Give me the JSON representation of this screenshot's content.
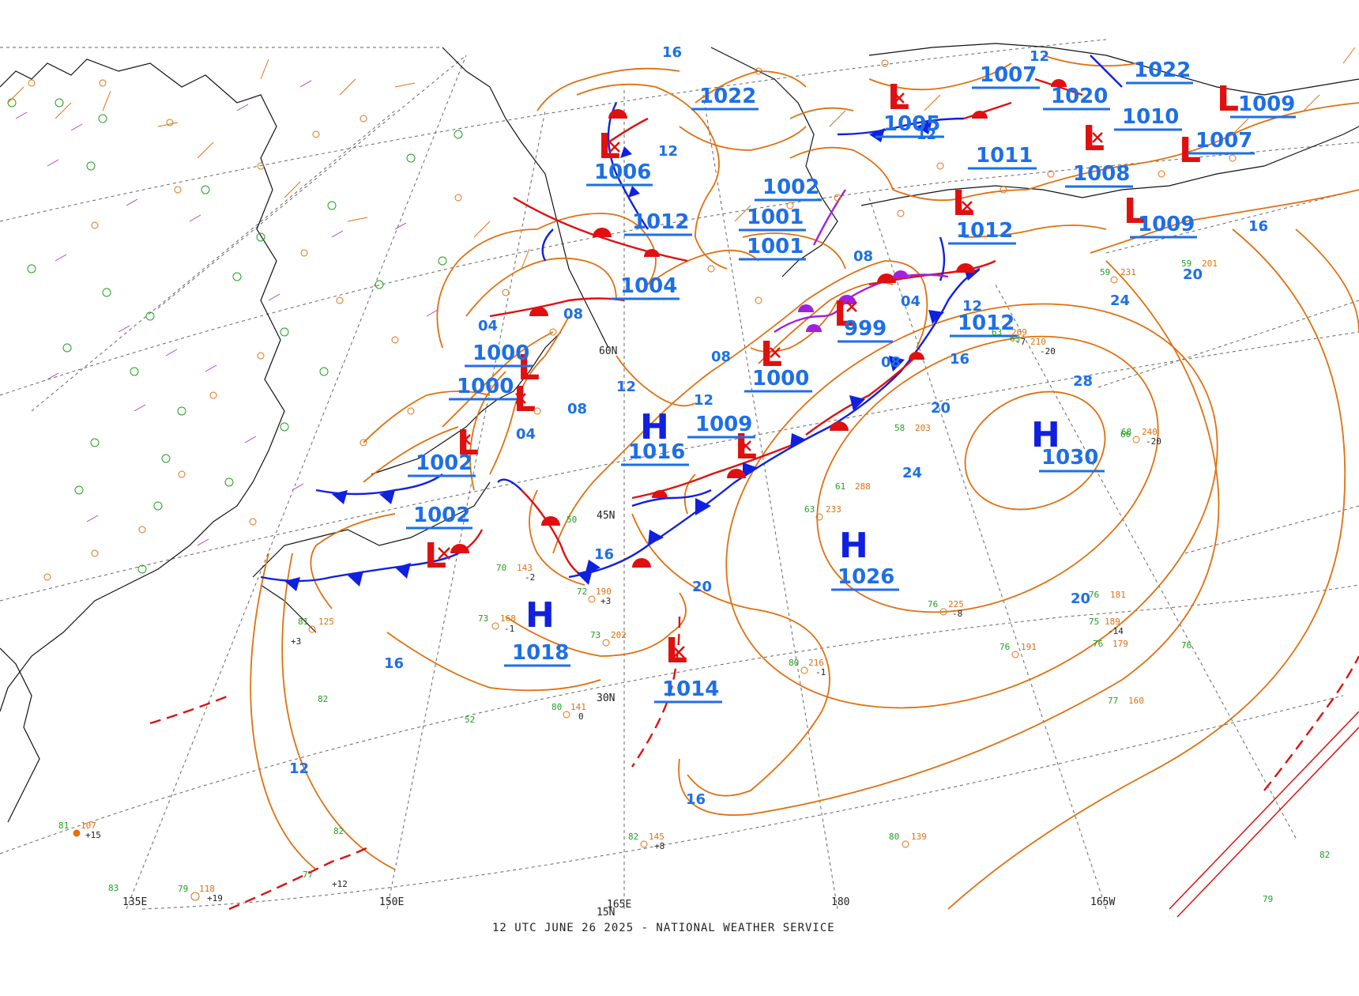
{
  "colors": {
    "isobar": "#e07010",
    "high": "#1020e0",
    "low": "#e01010",
    "pressure_label": "#1e6fe6",
    "cold_front": "#1020e0",
    "warm_front": "#e01010",
    "occluded_front": "#a020e0",
    "coast": "#111111",
    "grid": "#333333",
    "temp": "#b040c0",
    "dewpoint": "#20a020",
    "pressure_obs": "#e07010"
  },
  "caption": "12 UTC JUNE 26 2025 - NATIONAL WEATHER SERVICE",
  "grid_labels": {
    "lon": [
      "135E",
      "150E",
      "165E",
      "180",
      "165W"
    ],
    "lat": [
      "45N",
      "30N",
      "15N",
      "60N"
    ]
  },
  "isobar_labels": [
    "16",
    "12",
    "12",
    "08",
    "04",
    "04",
    "08",
    "08",
    "12",
    "12",
    "12",
    "08",
    "04",
    "08",
    "12",
    "16",
    "16",
    "20",
    "24",
    "28",
    "24",
    "20",
    "20",
    "16",
    "16",
    "20",
    "16",
    "12"
  ],
  "centers": [
    {
      "type": "H",
      "value": "1030"
    },
    {
      "type": "H",
      "value": "1026"
    },
    {
      "type": "H",
      "value": "1018"
    },
    {
      "type": "H",
      "value": "1016"
    },
    {
      "type": "L",
      "value": "1014"
    },
    {
      "type": "L",
      "value": "1002"
    },
    {
      "type": "L",
      "value": "1002"
    },
    {
      "type": "L",
      "value": "1000"
    },
    {
      "type": "L",
      "value": "1000"
    },
    {
      "type": "L",
      "value": "1009"
    },
    {
      "type": "L",
      "value": "1000"
    },
    {
      "type": "L",
      "value": "999"
    },
    {
      "type": "L",
      "value": "1004"
    },
    {
      "type": "L",
      "value": "1001"
    },
    {
      "type": "L",
      "value": "1001"
    },
    {
      "type": "L",
      "value": "1006"
    },
    {
      "type": "H",
      "value": "1012"
    },
    {
      "type": "L",
      "value": "1002"
    },
    {
      "type": "H",
      "value": "1022"
    },
    {
      "type": "L",
      "value": "1005"
    },
    {
      "type": "L",
      "value": "1007"
    },
    {
      "type": "L",
      "value": "1012"
    },
    {
      "type": "L",
      "value": "1011"
    },
    {
      "type": "L",
      "value": "1020"
    },
    {
      "type": "L",
      "value": "1008"
    },
    {
      "type": "L",
      "value": "1022"
    },
    {
      "type": "L",
      "value": "1010"
    },
    {
      "type": "L",
      "value": "1009"
    },
    {
      "type": "L",
      "value": "1007"
    },
    {
      "type": "L",
      "value": "1009"
    },
    {
      "type": "H",
      "value": "1012"
    }
  ],
  "stations": [
    {
      "t": "73",
      "p": "168",
      "d": "-1"
    },
    {
      "t": "72",
      "p": "190",
      "d": "+3"
    },
    {
      "t": "73",
      "p": "202",
      "d": ""
    },
    {
      "t": "80",
      "p": "141",
      "d": "0"
    },
    {
      "t": "82",
      "p": "145",
      "d": "+8"
    },
    {
      "t": "80",
      "p": "139",
      "d": ""
    },
    {
      "t": "80",
      "p": "216",
      "d": "-1"
    },
    {
      "t": "63",
      "p": "233",
      "d": ""
    },
    {
      "t": "76",
      "p": "225",
      "d": "-8"
    },
    {
      "t": "76",
      "p": "181",
      "d": ""
    },
    {
      "t": "76",
      "p": "191",
      "d": ""
    },
    {
      "t": "77",
      "p": "160",
      "d": ""
    },
    {
      "t": "68",
      "p": "240",
      "d": "-20"
    },
    {
      "t": "63",
      "p": "269",
      "d": "-7"
    },
    {
      "t": "59",
      "p": "231",
      "d": ""
    },
    {
      "t": "81",
      "p": "125",
      "d": "+3"
    },
    {
      "t": "79",
      "p": "118",
      "d": "+19"
    },
    {
      "t": "81",
      "p": "107",
      "d": "+15"
    },
    {
      "t": "77",
      "p": "",
      "d": "+12"
    },
    {
      "t": "61",
      "p": "288",
      "d": ""
    },
    {
      "t": "58",
      "p": "203",
      "d": ""
    },
    {
      "t": "63",
      "p": "210",
      "d": "-20"
    },
    {
      "t": "59",
      "p": "201",
      "d": ""
    },
    {
      "t": "50",
      "p": "",
      "d": ""
    },
    {
      "t": "70",
      "p": "143",
      "d": "-2"
    },
    {
      "t": "52",
      "p": "",
      "d": ""
    },
    {
      "t": "82",
      "p": "",
      "d": ""
    },
    {
      "t": "82",
      "p": "",
      "d": ""
    },
    {
      "t": "79",
      "p": "",
      "d": ""
    },
    {
      "t": "75",
      "p": "189",
      "d": "-14"
    },
    {
      "t": "76",
      "p": "179",
      "d": ""
    },
    {
      "t": "76",
      "p": "",
      "d": ""
    },
    {
      "t": "66",
      "p": "",
      "d": ""
    },
    {
      "t": "83",
      "p": "",
      "d": ""
    },
    {
      "t": "82",
      "p": "",
      "d": ""
    }
  ]
}
